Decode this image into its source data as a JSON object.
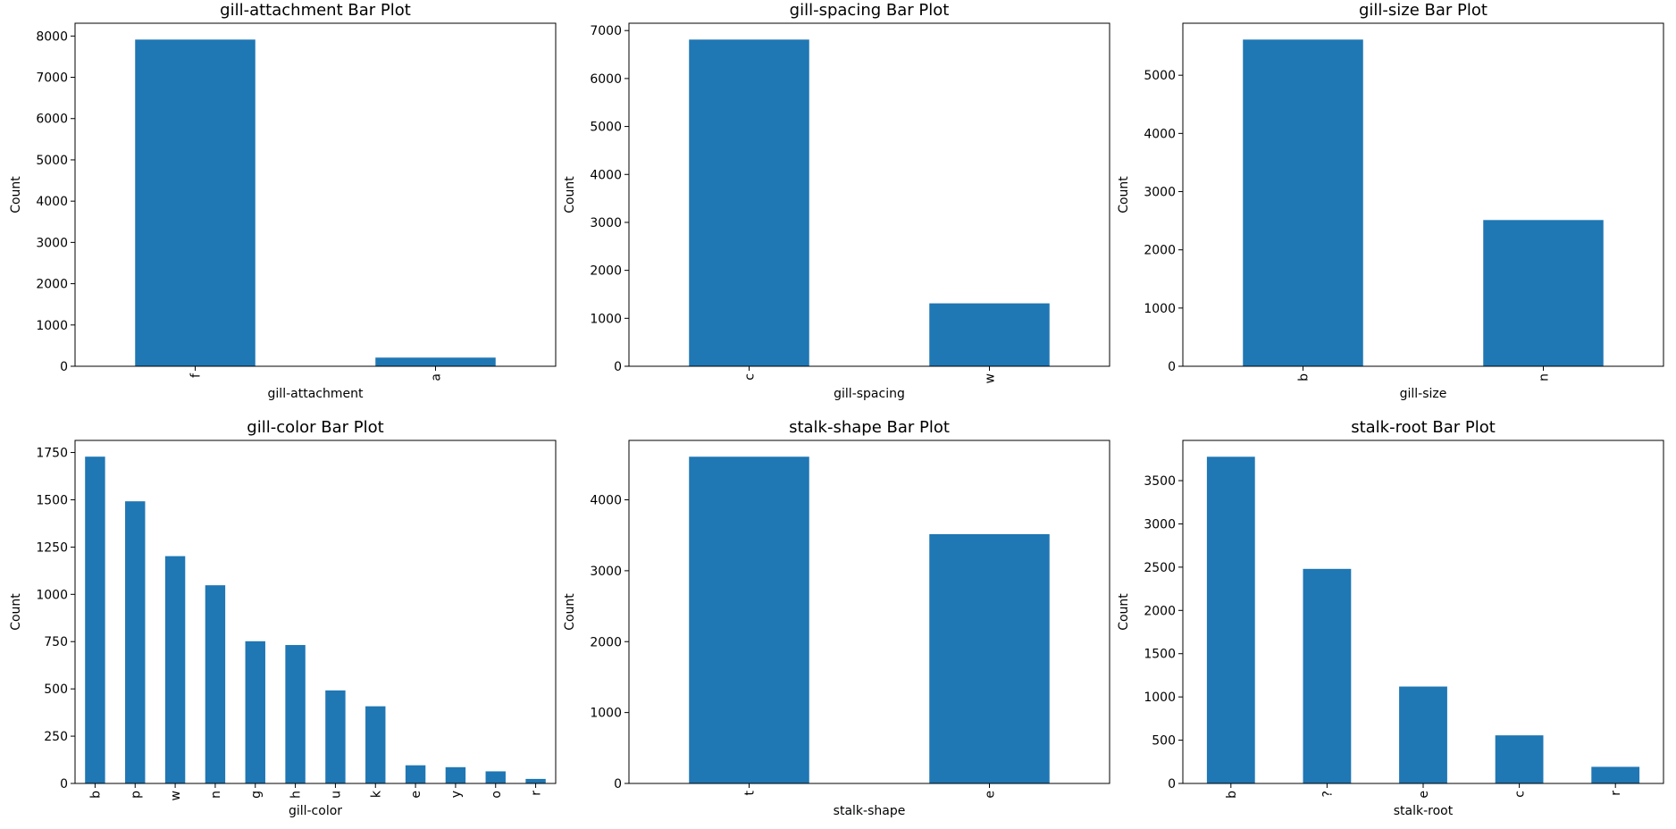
{
  "colors": {
    "bar": "#1f77b4"
  },
  "chart_data": [
    {
      "type": "bar",
      "title": "gill-attachment Bar Plot",
      "xlabel": "gill-attachment",
      "ylabel": "Count",
      "categories": [
        "f",
        "a"
      ],
      "values": [
        7914,
        210
      ],
      "yticks": [
        0,
        1000,
        2000,
        3000,
        4000,
        5000,
        6000,
        7000,
        8000
      ],
      "ylim": [
        0,
        8310
      ],
      "grid": false
    },
    {
      "type": "bar",
      "title": "gill-spacing Bar Plot",
      "xlabel": "gill-spacing",
      "ylabel": "Count",
      "categories": [
        "c",
        "w"
      ],
      "values": [
        6812,
        1312
      ],
      "yticks": [
        0,
        1000,
        2000,
        3000,
        4000,
        5000,
        6000,
        7000
      ],
      "ylim": [
        0,
        7153
      ],
      "grid": false
    },
    {
      "type": "bar",
      "title": "gill-size Bar Plot",
      "xlabel": "gill-size",
      "ylabel": "Count",
      "categories": [
        "b",
        "n"
      ],
      "values": [
        5612,
        2512
      ],
      "yticks": [
        0,
        1000,
        2000,
        3000,
        4000,
        5000
      ],
      "ylim": [
        0,
        5893
      ],
      "grid": false
    },
    {
      "type": "bar",
      "title": "gill-color Bar Plot",
      "xlabel": "gill-color",
      "ylabel": "Count",
      "categories": [
        "b",
        "p",
        "w",
        "n",
        "g",
        "h",
        "u",
        "k",
        "e",
        "y",
        "o",
        "r"
      ],
      "values": [
        1728,
        1492,
        1202,
        1048,
        752,
        732,
        492,
        408,
        96,
        86,
        64,
        24
      ],
      "yticks": [
        0,
        250,
        500,
        750,
        1000,
        1250,
        1500,
        1750
      ],
      "ylim": [
        0,
        1814
      ],
      "grid": false
    },
    {
      "type": "bar",
      "title": "stalk-shape Bar Plot",
      "xlabel": "stalk-shape",
      "ylabel": "Count",
      "categories": [
        "t",
        "e"
      ],
      "values": [
        4608,
        3516
      ],
      "yticks": [
        0,
        1000,
        2000,
        3000,
        4000
      ],
      "ylim": [
        0,
        4838
      ],
      "grid": false
    },
    {
      "type": "bar",
      "title": "stalk-root Bar Plot",
      "xlabel": "stalk-root",
      "ylabel": "Count",
      "categories": [
        "b",
        "?",
        "e",
        "c",
        "r"
      ],
      "values": [
        3776,
        2480,
        1120,
        556,
        192
      ],
      "yticks": [
        0,
        500,
        1000,
        1500,
        2000,
        2500,
        3000,
        3500
      ],
      "ylim": [
        0,
        3965
      ],
      "grid": false
    }
  ]
}
